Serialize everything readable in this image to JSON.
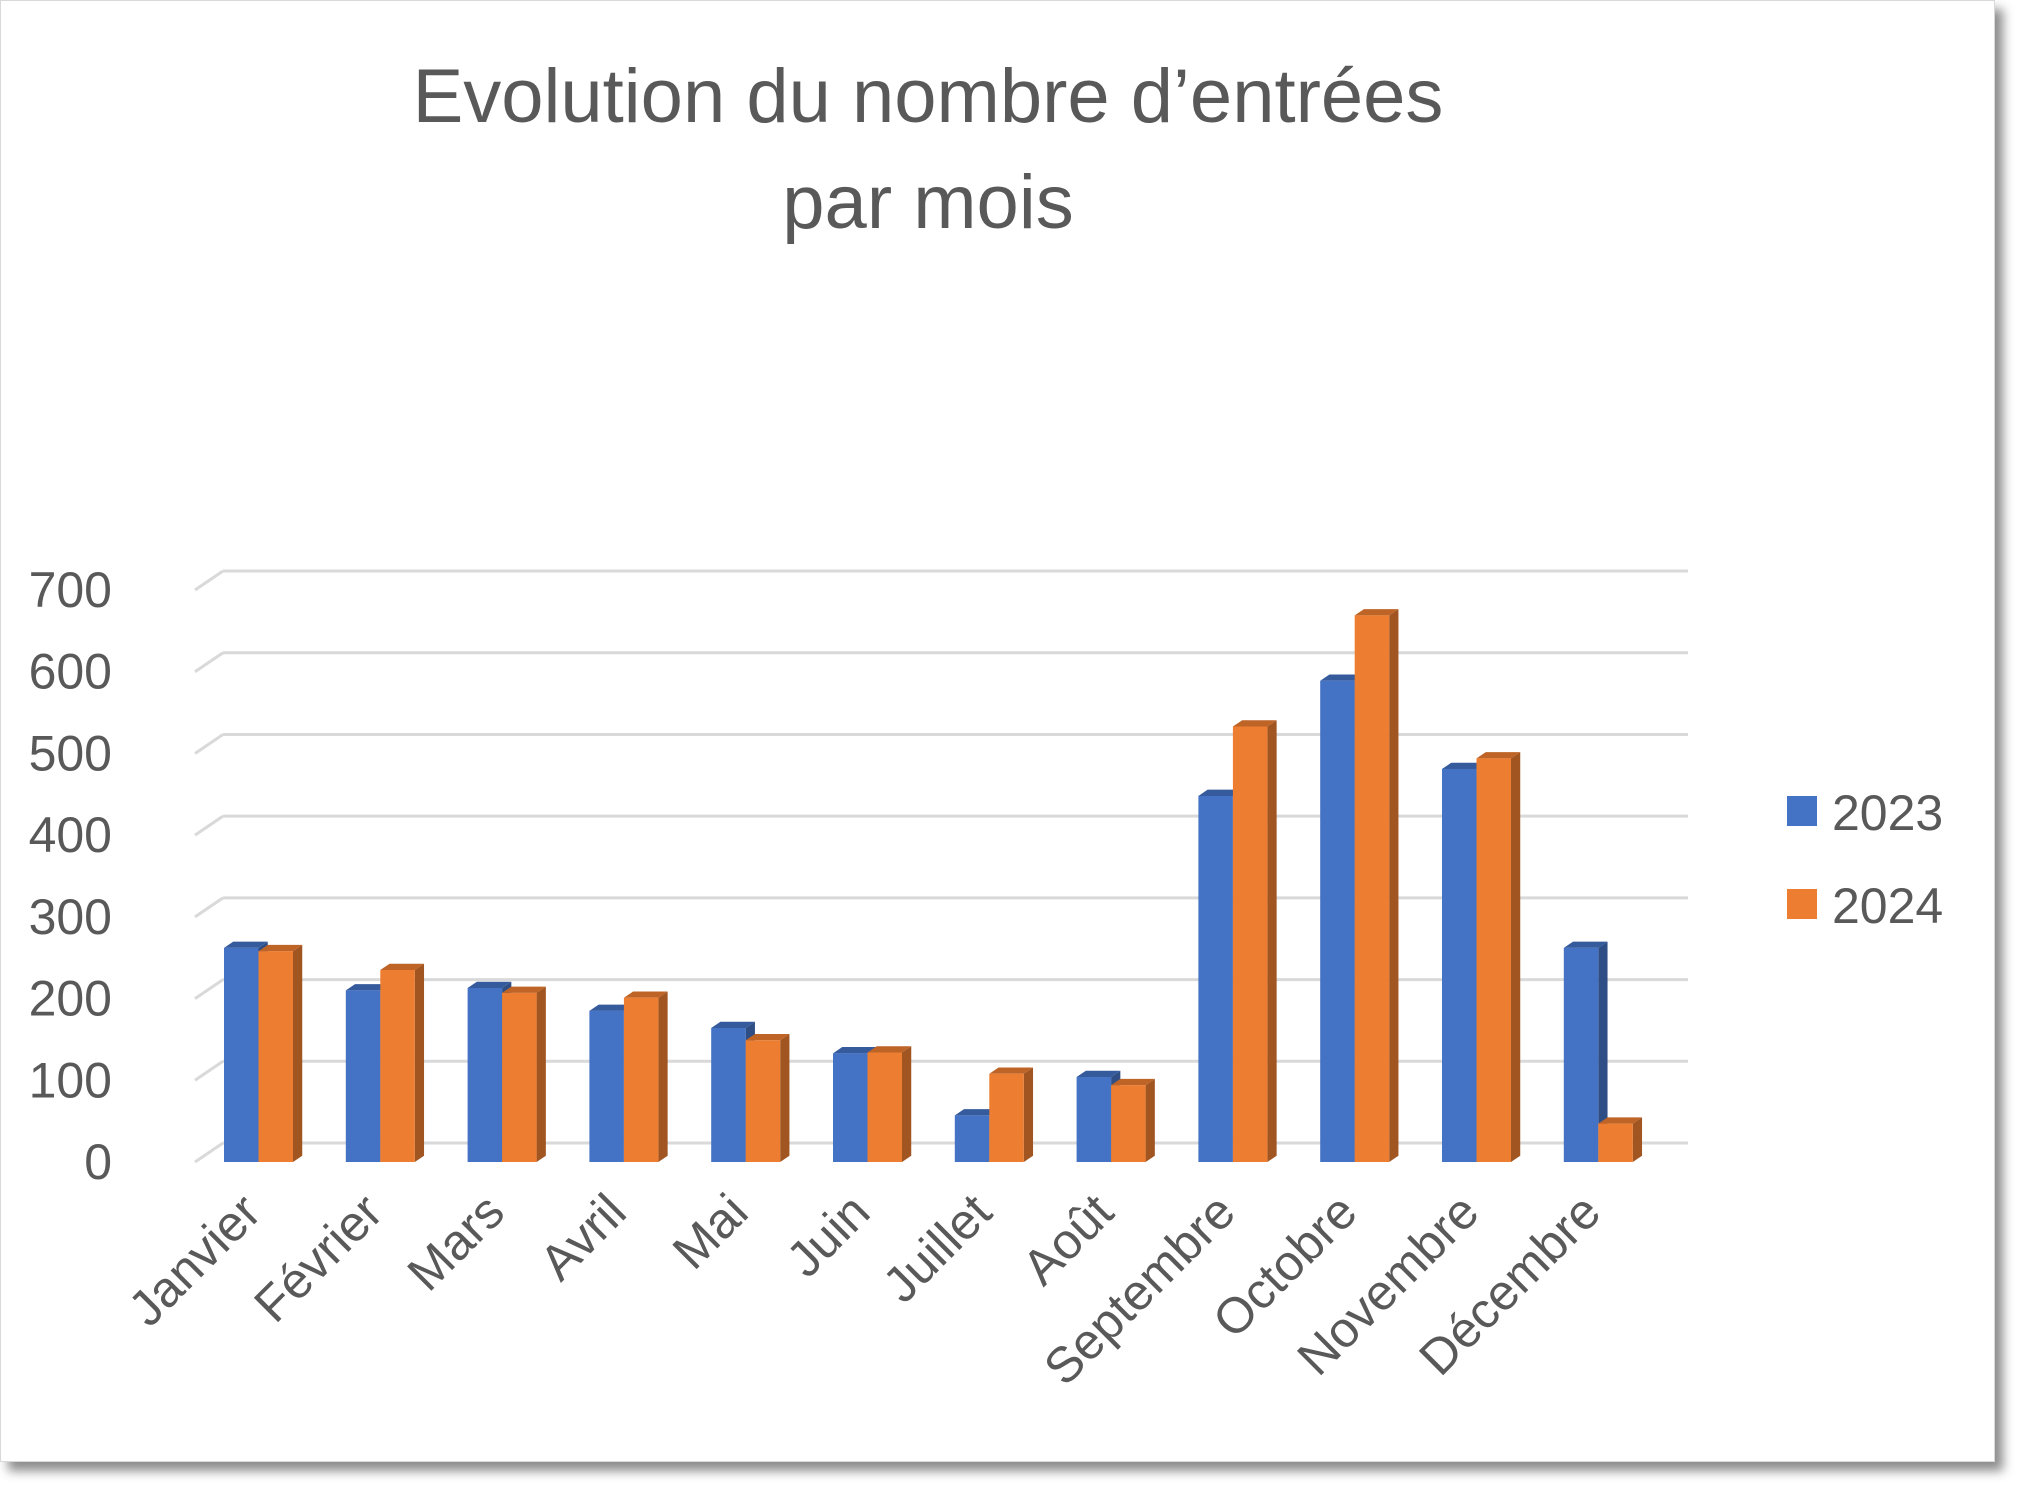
{
  "chart_data": {
    "type": "bar",
    "title_lines": [
      "Evolution du nombre d’entrées",
      "par mois"
    ],
    "xlabel": "",
    "ylabel": "",
    "categories": [
      "Janvier",
      "Février",
      "Mars",
      "Avril",
      "Mai",
      "Juin",
      "Juillet",
      "Août",
      "Septembre",
      "Octobre",
      "Novembre",
      "Décembre"
    ],
    "series": [
      {
        "name": "2023",
        "color": "#4472c4",
        "values": [
          262,
          210,
          213,
          185,
          164,
          133,
          57,
          104,
          448,
          589,
          481,
          262
        ]
      },
      {
        "name": "2024",
        "color": "#ed7d31",
        "values": [
          258,
          235,
          207,
          201,
          149,
          134,
          108,
          94,
          533,
          669,
          494,
          47
        ]
      }
    ],
    "ylim": [
      0,
      700
    ],
    "yticks": [
      "0",
      "100",
      "200",
      "300",
      "400",
      "500",
      "600",
      "700"
    ],
    "grid": true,
    "legend_position": "right",
    "style": "3d-clustered-column"
  }
}
